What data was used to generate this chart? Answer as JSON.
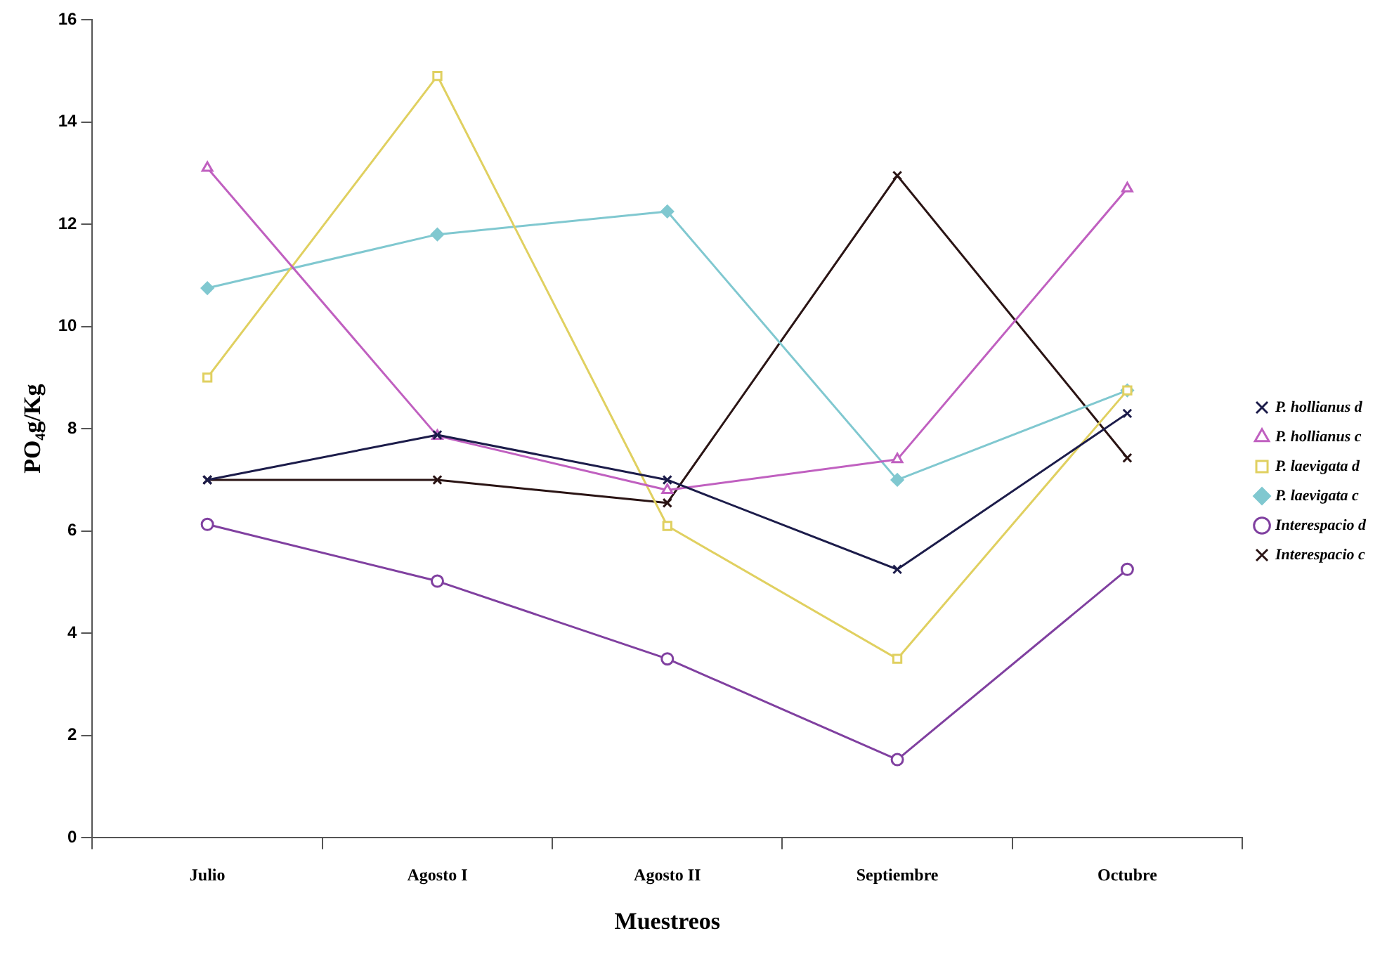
{
  "chart_data": {
    "type": "line",
    "xlabel": "Muestreos",
    "ylabel": "PO₄g/Kg",
    "categories": [
      "Julio",
      "Agosto I",
      "Agosto II",
      "Septiembre",
      "Octubre"
    ],
    "ylim": [
      0,
      16
    ],
    "yticks": [
      0,
      2,
      4,
      6,
      8,
      10,
      12,
      14,
      16
    ],
    "legend": "right",
    "series": [
      {
        "name": "P. hollianus d",
        "color": "#1c1c4a",
        "marker": "cross",
        "values": [
          7.0,
          7.88,
          7.0,
          5.25,
          8.3
        ]
      },
      {
        "name": "P. hollianus c",
        "color": "#c060c0",
        "marker": "triangle",
        "values": [
          13.1,
          7.86,
          6.8,
          7.4,
          12.7
        ]
      },
      {
        "name": "P. laevigata d",
        "color": "#e0d060",
        "marker": "square",
        "values": [
          9.0,
          14.9,
          6.1,
          3.5,
          8.75
        ]
      },
      {
        "name": "P. laevigata c",
        "color": "#80c8d0",
        "marker": "diamond",
        "values": [
          10.75,
          11.8,
          12.25,
          7.0,
          8.75
        ]
      },
      {
        "name": "Interespacio d",
        "color": "#8040a0",
        "marker": "circle",
        "values": [
          6.13,
          5.02,
          3.5,
          1.53,
          5.25
        ]
      },
      {
        "name": "Interespacio c",
        "color": "#2a1414",
        "marker": "cross",
        "values": [
          7.0,
          7.0,
          6.55,
          12.95,
          7.43
        ]
      }
    ]
  }
}
